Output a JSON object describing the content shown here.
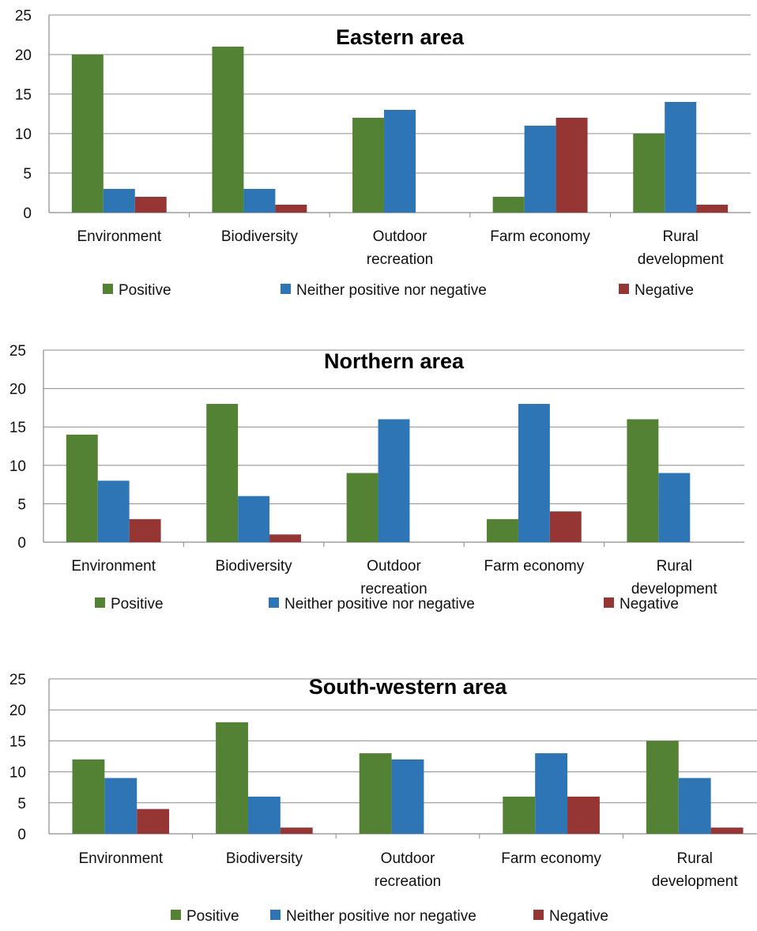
{
  "colors": {
    "positive": "#548235",
    "neutral": "#2e75b6",
    "negative": "#963634",
    "grid": "#8c8c8c"
  },
  "chart_data": [
    {
      "type": "bar",
      "title": "Eastern area",
      "categories": [
        "Environment",
        "Biodiversity",
        "Outdoor recreation",
        "Farm economy",
        "Rural development"
      ],
      "series": [
        {
          "name": "Positive",
          "values": [
            20,
            21,
            12,
            2,
            10
          ]
        },
        {
          "name": "Neither positive nor negative",
          "values": [
            3,
            3,
            13,
            11,
            14
          ]
        },
        {
          "name": "Negative",
          "values": [
            2,
            1,
            0,
            12,
            1
          ]
        }
      ],
      "yticks": [
        "0",
        "5",
        "10",
        "15",
        "20",
        "25"
      ],
      "ylim": [
        0,
        25
      ],
      "grid": true,
      "legend": "bottom"
    },
    {
      "type": "bar",
      "title": "Northern area",
      "categories": [
        "Environment",
        "Biodiversity",
        "Outdoor recreation",
        "Farm economy",
        "Rural development"
      ],
      "series": [
        {
          "name": "Positive",
          "values": [
            14,
            18,
            9,
            3,
            16
          ]
        },
        {
          "name": "Neither positive nor negative",
          "values": [
            8,
            6,
            16,
            18,
            9
          ]
        },
        {
          "name": "Negative",
          "values": [
            3,
            1,
            0,
            4,
            0
          ]
        }
      ],
      "yticks": [
        "0",
        "5",
        "10",
        "15",
        "20",
        "25"
      ],
      "ylim": [
        0,
        25
      ],
      "grid": true,
      "legend": "bottom"
    },
    {
      "type": "bar",
      "title": "South-western area",
      "categories": [
        "Environment",
        "Biodiversity",
        "Outdoor recreation",
        "Farm economy",
        "Rural development"
      ],
      "series": [
        {
          "name": "Positive",
          "values": [
            12,
            18,
            13,
            6,
            15
          ]
        },
        {
          "name": "Neither positive nor negative",
          "values": [
            9,
            6,
            12,
            13,
            9
          ]
        },
        {
          "name": "Negative",
          "values": [
            4,
            1,
            0,
            6,
            1
          ]
        }
      ],
      "yticks": [
        "0",
        "5",
        "10",
        "15",
        "20",
        "25"
      ],
      "ylim": [
        0,
        25
      ],
      "grid": true,
      "legend": "bottom"
    }
  ]
}
